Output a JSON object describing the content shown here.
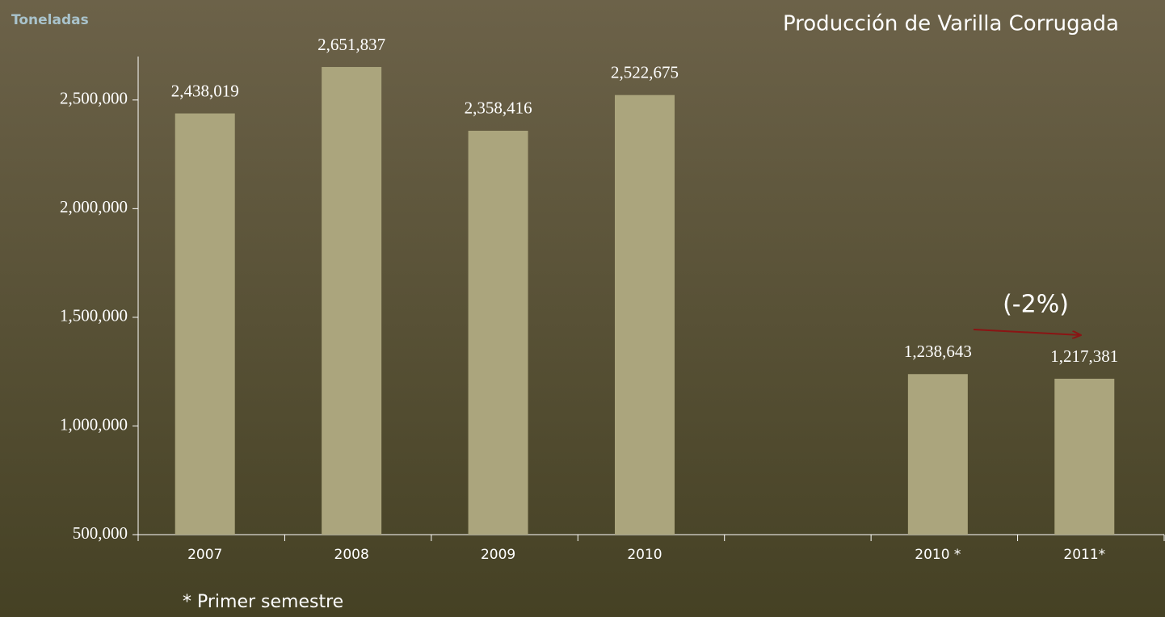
{
  "chart_data": {
    "type": "bar",
    "title": "Producción de Varilla Corrugada",
    "ylabel": "Toneladas",
    "footnote": "* Primer semestre",
    "annotation": "(-2%)",
    "categories": [
      "2007",
      "2008",
      "2009",
      "2010",
      null,
      "2010 *",
      "2011*"
    ],
    "values": [
      2438019,
      2651837,
      2358416,
      2522675,
      null,
      1238643,
      1217381
    ],
    "value_labels": [
      "2,438,019",
      "2,651,837",
      "2,358,416",
      "2,522,675",
      null,
      "1,238,643",
      "1,217,381"
    ],
    "color": "#aba57d",
    "ylim": [
      500000,
      2700000
    ],
    "yticks": [
      {
        "value": 500000,
        "label": "500,000"
      },
      {
        "value": 1000000,
        "label": "1,000,000"
      },
      {
        "value": 1500000,
        "label": "1,500,000"
      },
      {
        "value": 2000000,
        "label": "2,000,000"
      },
      {
        "value": 2500000,
        "label": "2,500,000"
      }
    ],
    "grid": false
  }
}
